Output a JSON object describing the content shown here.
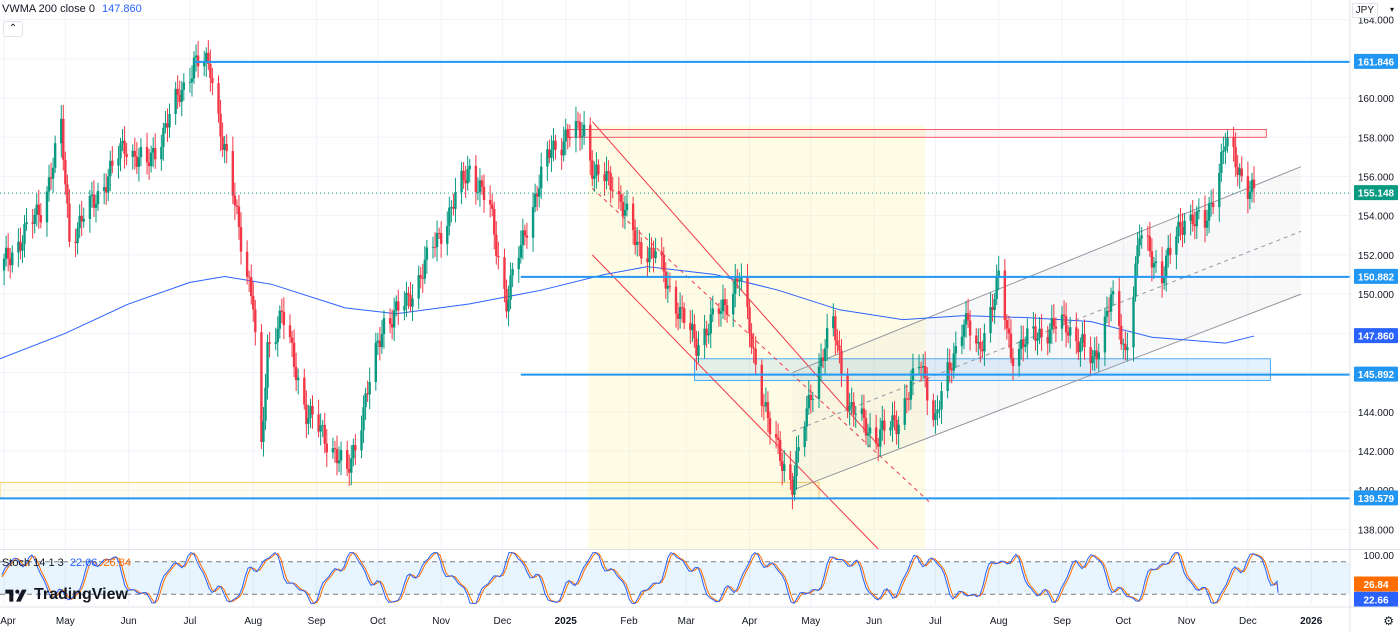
{
  "header": {
    "indicator_label": "VWMA 200 close 0",
    "indicator_value": "147.860",
    "collapse_glyph": "⌃",
    "currency": "JPY",
    "currency_menu_glyph": "▾"
  },
  "stoch": {
    "label": "Stoch 14 1 3",
    "k_value": "22.66",
    "d_value": "26.84"
  },
  "brand": {
    "name": "TradingView"
  },
  "settings_glyph": "⚙",
  "colors": {
    "up": "#089981",
    "down": "#f23645",
    "hline": "#2196f3",
    "vwma": "#2962ff",
    "stoch_k": "#2962ff",
    "stoch_d": "#ff6d00",
    "price_marker": "#089981"
  },
  "chart_data": [
    {
      "type": "candlestick",
      "title": "",
      "currency": "JPY",
      "ylim": [
        137.0,
        165.0
      ],
      "y_ticks": [
        "164.000",
        "162.000",
        "160.000",
        "158.000",
        "156.000",
        "154.000",
        "152.000",
        "150.000",
        "148.000",
        "146.000",
        "144.000",
        "142.000",
        "140.000",
        "138.000"
      ],
      "x_ticks": [
        "Apr",
        "May",
        "Jun",
        "Jul",
        "Aug",
        "Sep",
        "Oct",
        "Nov",
        "Dec",
        "2025",
        "Feb",
        "Mar",
        "Apr",
        "May",
        "Jun",
        "Jul",
        "Aug",
        "Sep",
        "Oct",
        "Nov",
        "Dec",
        "2026"
      ],
      "x_tick_dates": [
        "2024-04-01",
        "2024-05-01",
        "2024-06-01",
        "2024-07-01",
        "2024-08-01",
        "2024-09-01",
        "2024-10-01",
        "2024-11-01",
        "2024-12-01",
        "2025-01-01",
        "2025-02-01",
        "2025-03-01",
        "2025-04-01",
        "2025-05-01",
        "2025-06-01",
        "2025-07-01",
        "2025-08-01",
        "2025-09-01",
        "2025-10-01",
        "2025-11-01",
        "2025-12-01",
        "2026-01-01"
      ],
      "x_range": [
        "2024-03-30",
        "2026-01-20"
      ],
      "price_path": [
        [
          "2024-03-30",
          151.2
        ],
        [
          "2024-04-20",
          154.5
        ],
        [
          "2024-04-29",
          158.4
        ],
        [
          "2024-05-03",
          152.9
        ],
        [
          "2024-05-15",
          154.7
        ],
        [
          "2024-05-30",
          157.6
        ],
        [
          "2024-06-10",
          156.5
        ],
        [
          "2024-06-20",
          158.8
        ],
        [
          "2024-07-03",
          161.8
        ],
        [
          "2024-07-11",
          161.6
        ],
        [
          "2024-07-17",
          157.8
        ],
        [
          "2024-07-24",
          154.0
        ],
        [
          "2024-08-01",
          149.5
        ],
        [
          "2024-08-05",
          141.8
        ],
        [
          "2024-08-08",
          147.3
        ],
        [
          "2024-08-15",
          149.0
        ],
        [
          "2024-08-27",
          144.0
        ],
        [
          "2024-09-10",
          142.0
        ],
        [
          "2024-09-16",
          140.7
        ],
        [
          "2024-09-27",
          145.5
        ],
        [
          "2024-10-04",
          148.6
        ],
        [
          "2024-10-15",
          149.5
        ],
        [
          "2024-10-31",
          153.0
        ],
        [
          "2024-11-15",
          156.5
        ],
        [
          "2024-11-25",
          154.3
        ],
        [
          "2024-12-03",
          149.6
        ],
        [
          "2024-12-13",
          153.6
        ],
        [
          "2024-12-25",
          157.5
        ],
        [
          "2025-01-10",
          158.5
        ],
        [
          "2025-01-15",
          156.0
        ],
        [
          "2025-01-24",
          155.8
        ],
        [
          "2025-02-05",
          152.5
        ],
        [
          "2025-02-14",
          152.0
        ],
        [
          "2025-02-26",
          149.0
        ],
        [
          "2025-03-06",
          147.5
        ],
        [
          "2025-03-20",
          149.5
        ],
        [
          "2025-03-27",
          150.9
        ],
        [
          "2025-04-04",
          146.5
        ],
        [
          "2025-04-11",
          143.0
        ],
        [
          "2025-04-22",
          140.3
        ],
        [
          "2025-05-01",
          145.0
        ],
        [
          "2025-05-12",
          148.5
        ],
        [
          "2025-05-20",
          144.2
        ],
        [
          "2025-06-02",
          142.7
        ],
        [
          "2025-06-12",
          143.5
        ],
        [
          "2025-06-24",
          146.5
        ],
        [
          "2025-07-01",
          143.6
        ],
        [
          "2025-07-15",
          148.8
        ],
        [
          "2025-07-22",
          147.0
        ],
        [
          "2025-08-01",
          150.7
        ],
        [
          "2025-08-07",
          147.0
        ],
        [
          "2025-08-20",
          148.0
        ],
        [
          "2025-09-03",
          148.5
        ],
        [
          "2025-09-16",
          146.5
        ],
        [
          "2025-09-25",
          149.8
        ],
        [
          "2025-10-02",
          147.0
        ],
        [
          "2025-10-09",
          153.0
        ],
        [
          "2025-10-20",
          151.0
        ],
        [
          "2025-10-31",
          154.0
        ],
        [
          "2025-11-10",
          153.5
        ],
        [
          "2025-11-20",
          157.7
        ],
        [
          "2025-12-01",
          155.5
        ],
        [
          "2025-12-04",
          155.15
        ]
      ],
      "series": [
        {
          "name": "VWMA 200 close 0",
          "points": [
            [
              "2024-03-30",
              146.7
            ],
            [
              "2024-05-01",
              148.0
            ],
            [
              "2024-06-01",
              149.5
            ],
            [
              "2024-07-01",
              150.6
            ],
            [
              "2024-07-18",
              150.9
            ],
            [
              "2024-08-10",
              150.5
            ],
            [
              "2024-09-15",
              149.3
            ],
            [
              "2024-10-10",
              149.0
            ],
            [
              "2024-11-15",
              149.5
            ],
            [
              "2024-12-20",
              150.2
            ],
            [
              "2025-01-20",
              151.0
            ],
            [
              "2025-02-10",
              151.4
            ],
            [
              "2025-03-15",
              151.0
            ],
            [
              "2025-04-15",
              150.2
            ],
            [
              "2025-05-15",
              149.2
            ],
            [
              "2025-06-15",
              148.7
            ],
            [
              "2025-07-15",
              148.9
            ],
            [
              "2025-08-15",
              148.8
            ],
            [
              "2025-09-15",
              148.6
            ],
            [
              "2025-10-15",
              147.8
            ],
            [
              "2025-11-20",
              147.5
            ],
            [
              "2025-12-04",
              147.86
            ]
          ]
        }
      ],
      "horizontal_levels": [
        {
          "value": 161.846,
          "label": "161.846",
          "from": "2024-07-03"
        },
        {
          "value": 150.882,
          "label": "150.882",
          "from": "2024-12-10"
        },
        {
          "value": 145.892,
          "label": "145.892",
          "from": "2024-12-10"
        },
        {
          "value": 139.579,
          "label": "139.579",
          "from": "2024-03-30"
        }
      ],
      "price_labels": [
        {
          "value": 155.148,
          "label": "155.148",
          "kind": "last"
        },
        {
          "value": 147.86,
          "label": "147.860",
          "kind": "vwma"
        }
      ],
      "zones": [
        {
          "from": "2025-01-01",
          "to": "2025-12-10",
          "low": 158.0,
          "high": 158.4,
          "color": "red"
        },
        {
          "from": "2025-03-05",
          "to": "2025-12-12",
          "low": 145.6,
          "high": 146.7,
          "color": "blue"
        },
        {
          "from": "2024-03-30",
          "to": "2025-05-05",
          "low": 139.6,
          "high": 140.4,
          "color": "yellow"
        },
        {
          "from": "2025-01-12",
          "to": "2025-06-26",
          "low": 137.0,
          "high": 158.6,
          "color": "yellow-fill"
        }
      ],
      "channels": [
        {
          "name": "falling",
          "upper": [
            [
              "2025-01-14",
              158.8
            ],
            [
              "2025-06-03",
              142.3
            ]
          ],
          "lower": [
            [
              "2025-01-14",
              152.0
            ],
            [
              "2025-06-03",
              137.0
            ]
          ],
          "mid": [
            [
              "2025-01-14",
              155.4
            ],
            [
              "2025-06-28",
              139.4
            ]
          ]
        },
        {
          "name": "rising",
          "upper": [
            [
              "2025-04-22",
              146.0
            ],
            [
              "2025-12-27",
              156.5
            ]
          ],
          "lower": [
            [
              "2025-04-22",
              140.0
            ],
            [
              "2025-12-27",
              150.0
            ]
          ],
          "mid": [
            [
              "2025-04-22",
              143.0
            ],
            [
              "2025-12-27",
              153.2
            ]
          ]
        }
      ]
    },
    {
      "type": "line",
      "title": "Stoch 14 1 3",
      "ylim": [
        0,
        100
      ],
      "y_ticks": [
        "100.00"
      ],
      "bands": [
        20,
        80
      ],
      "series": [
        {
          "name": "%K",
          "last": 22.66
        },
        {
          "name": "%D",
          "last": 26.84
        }
      ]
    }
  ]
}
